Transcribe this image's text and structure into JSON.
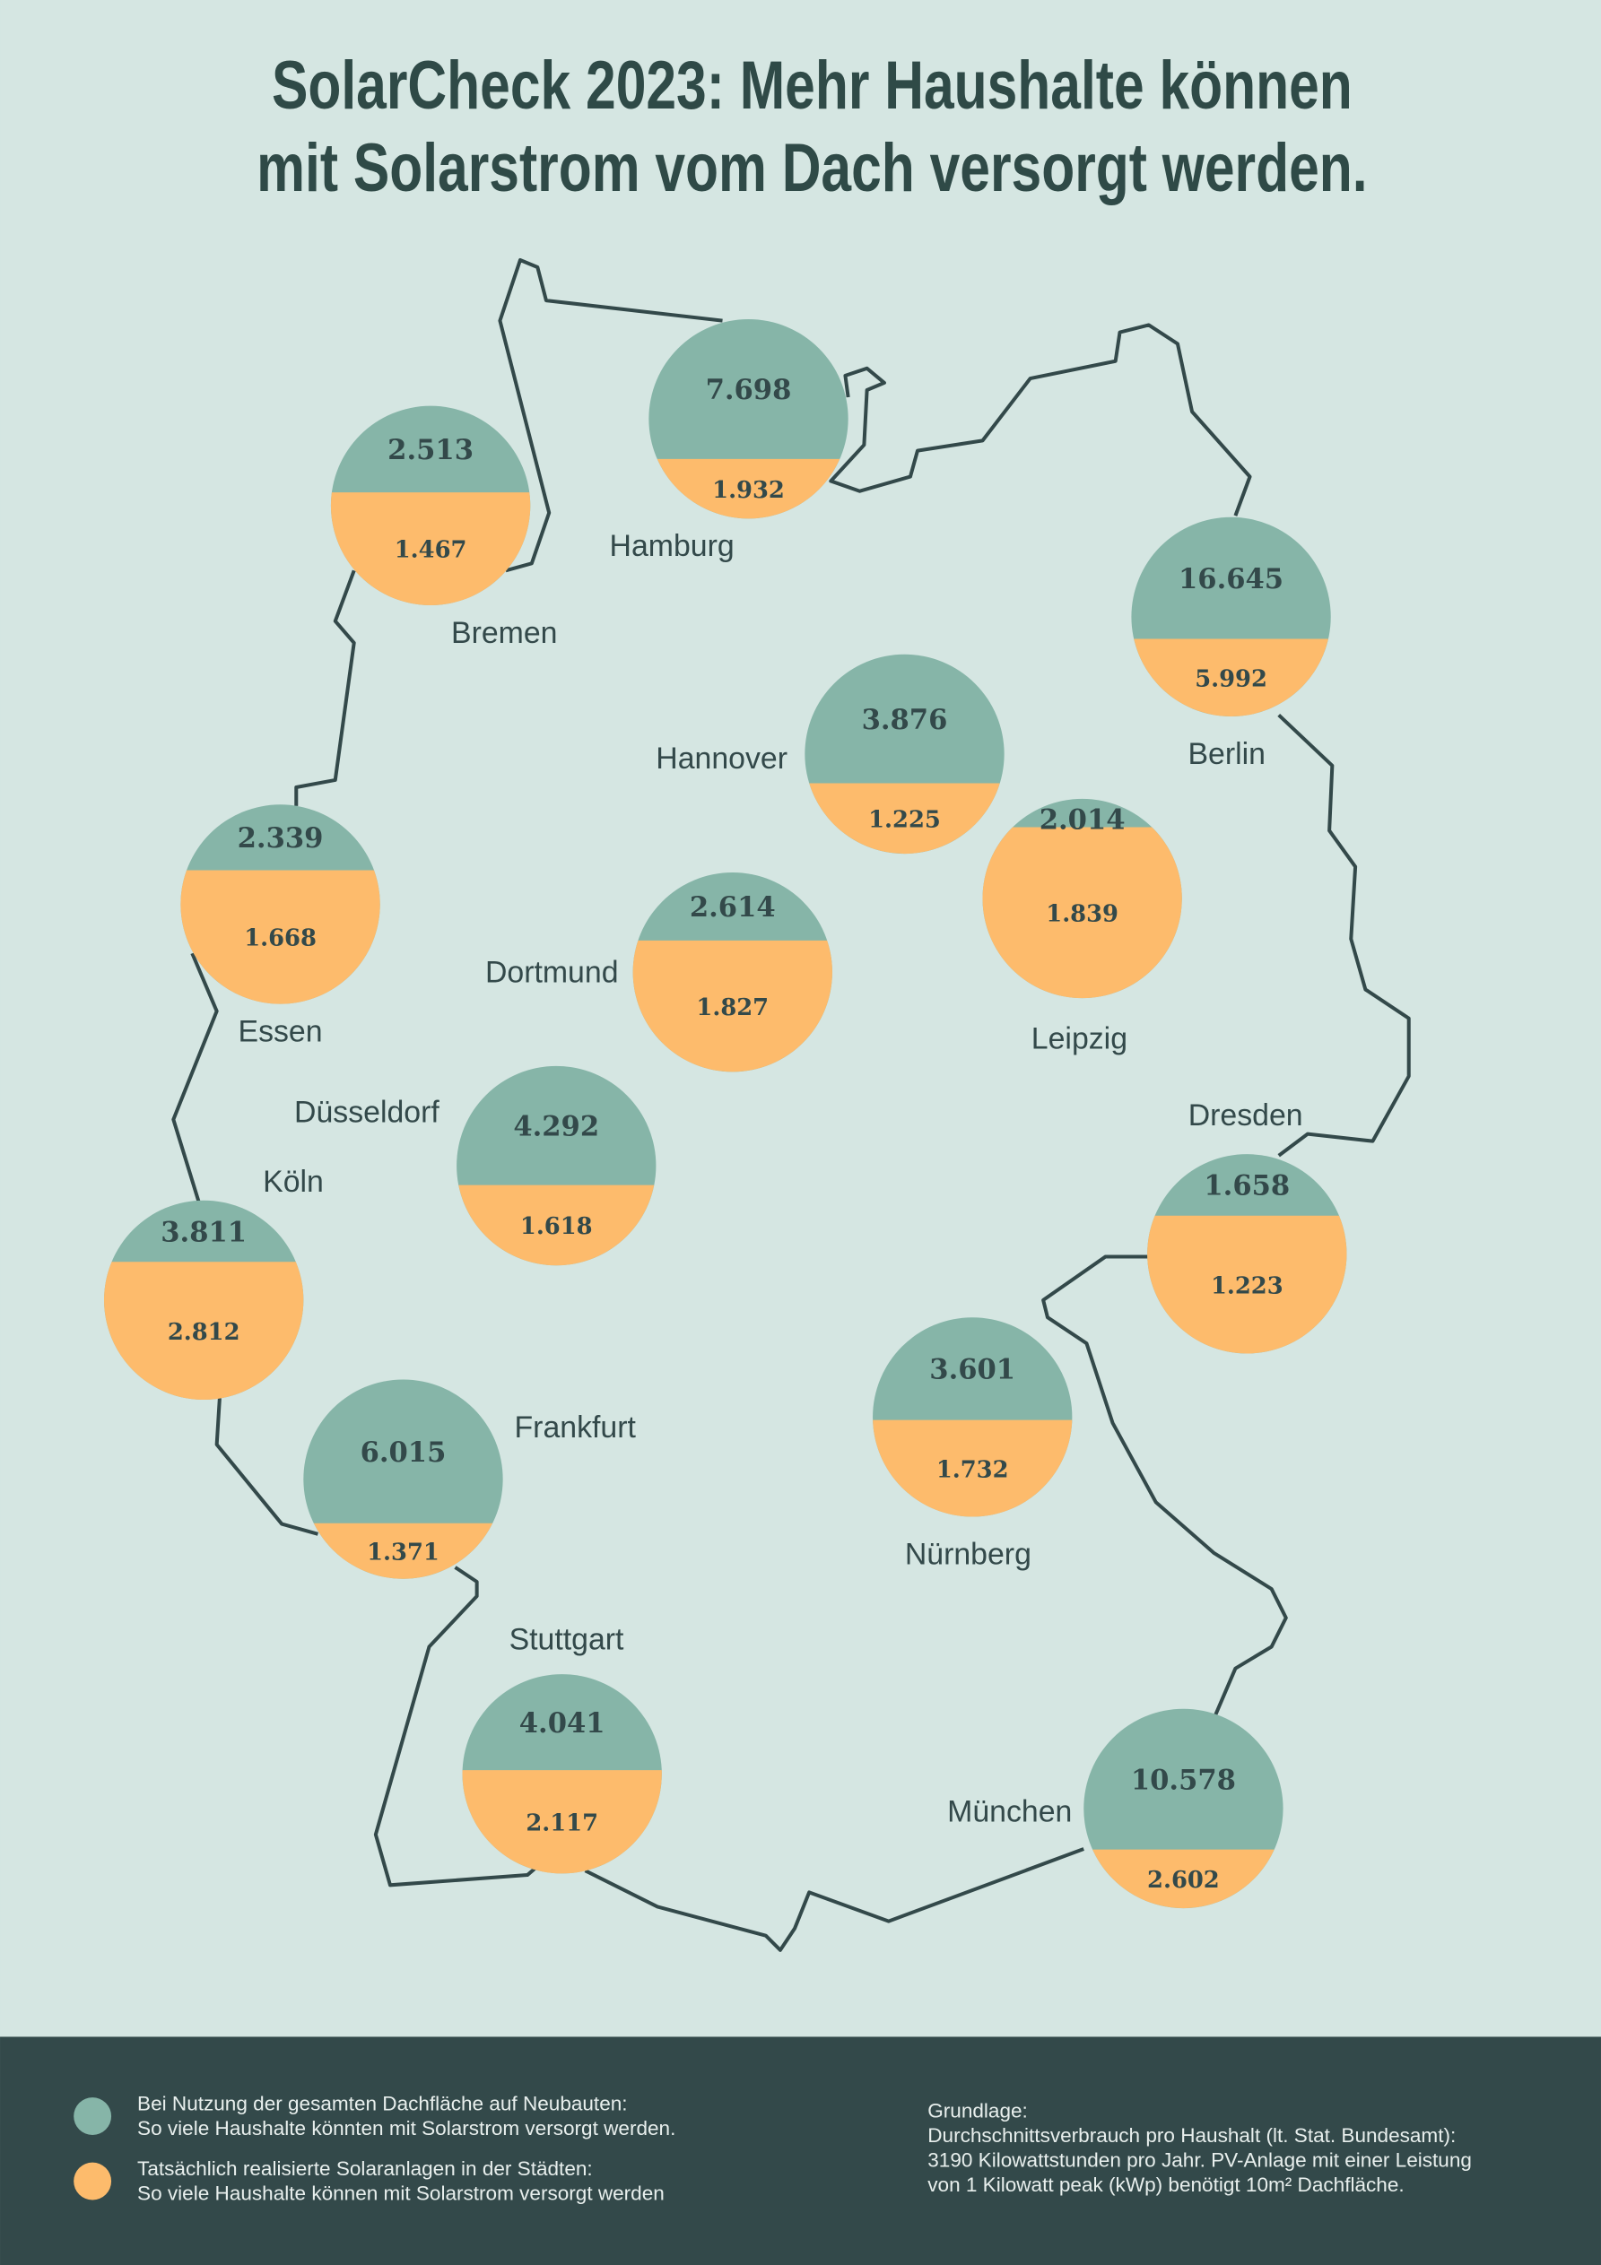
{
  "chart_data": {
    "type": "split-circles-map",
    "title": "SolarCheck 2023: Mehr Haushalte können\nmit Solarstrom vom Dach versorgt werden.",
    "categories": [
      "Hamburg",
      "Bremen",
      "Berlin",
      "Hannover",
      "Leipzig",
      "Essen",
      "Dortmund",
      "Düsseldorf",
      "Köln",
      "Frankfurt",
      "Stuttgart",
      "Nürnberg",
      "München",
      "Dresden"
    ],
    "series": [
      {
        "name": "Bei Nutzung der gesamten Dachfläche auf Neubauten:\nSo viele Haushalte könnten mit Solarstrom versorgt werden.",
        "color": "#86b5a8",
        "values": [
          7698,
          2513,
          16645,
          3876,
          2014,
          2339,
          2614,
          4292,
          3811,
          6015,
          4041,
          3601,
          10578,
          1658
        ],
        "value_labels": [
          "7.698",
          "2.513",
          "16.645",
          "3.876",
          "2.014",
          "2.339",
          "2.614",
          "4.292",
          "3.811",
          "6.015",
          "4.041",
          "3.601",
          "10.578",
          "1.658"
        ]
      },
      {
        "name": "Tatsächlich realisierte Solaranlagen in der Städten:\nSo viele Haushalte können mit Solarstrom versorgt werden",
        "color": "#fdbb6c",
        "values": [
          1932,
          1467,
          5992,
          1225,
          1839,
          1668,
          1827,
          1618,
          2812,
          1371,
          2117,
          1732,
          2602,
          1223
        ],
        "value_labels": [
          "1.932",
          "1.467",
          "5.992",
          "1.225",
          "1.839",
          "1.668",
          "1.827",
          "1.618",
          "2.812",
          "1.371",
          "2.117",
          "1.732",
          "2.602",
          "1.223"
        ]
      }
    ],
    "note": "Grundlage:\nDurchschnittsverbrauch pro Haushalt (lt. Stat. Bundesamt):\n3190 Kilowattstunden pro Jahr. PV-Anlage mit einer Leistung\nvon 1 Kilowatt peak (kWp) benötigt 10m² Dachfläche."
  }
}
